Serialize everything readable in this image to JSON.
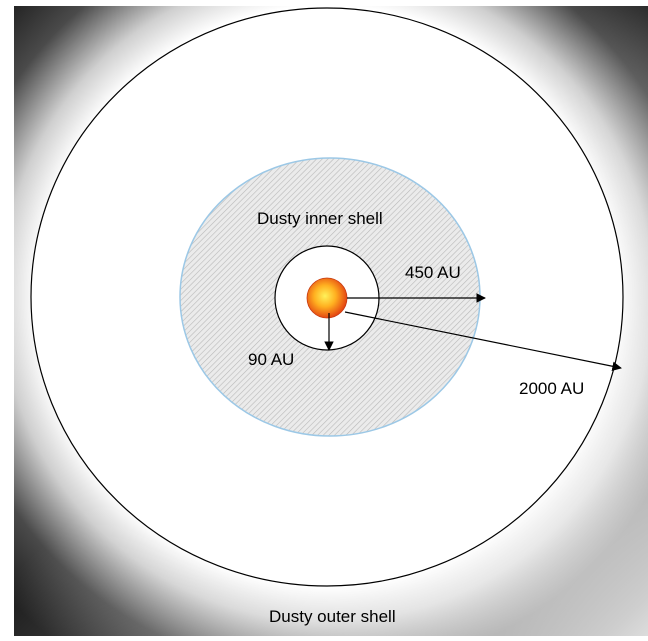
{
  "diagram": {
    "labels": {
      "inner_shell": "Dusty inner shell",
      "outer_shell": "Dusty outer shell",
      "radius_90": "90 AU",
      "radius_450": "450 AU",
      "radius_2000": "2000 AU"
    },
    "colors": {
      "inner_shell_hatch_fill": "#e2e2e2",
      "inner_shell_border": "#9cc8e6",
      "star_core": "#ffd21e",
      "star_edge": "#e0340f",
      "outline": "#000000"
    }
  }
}
